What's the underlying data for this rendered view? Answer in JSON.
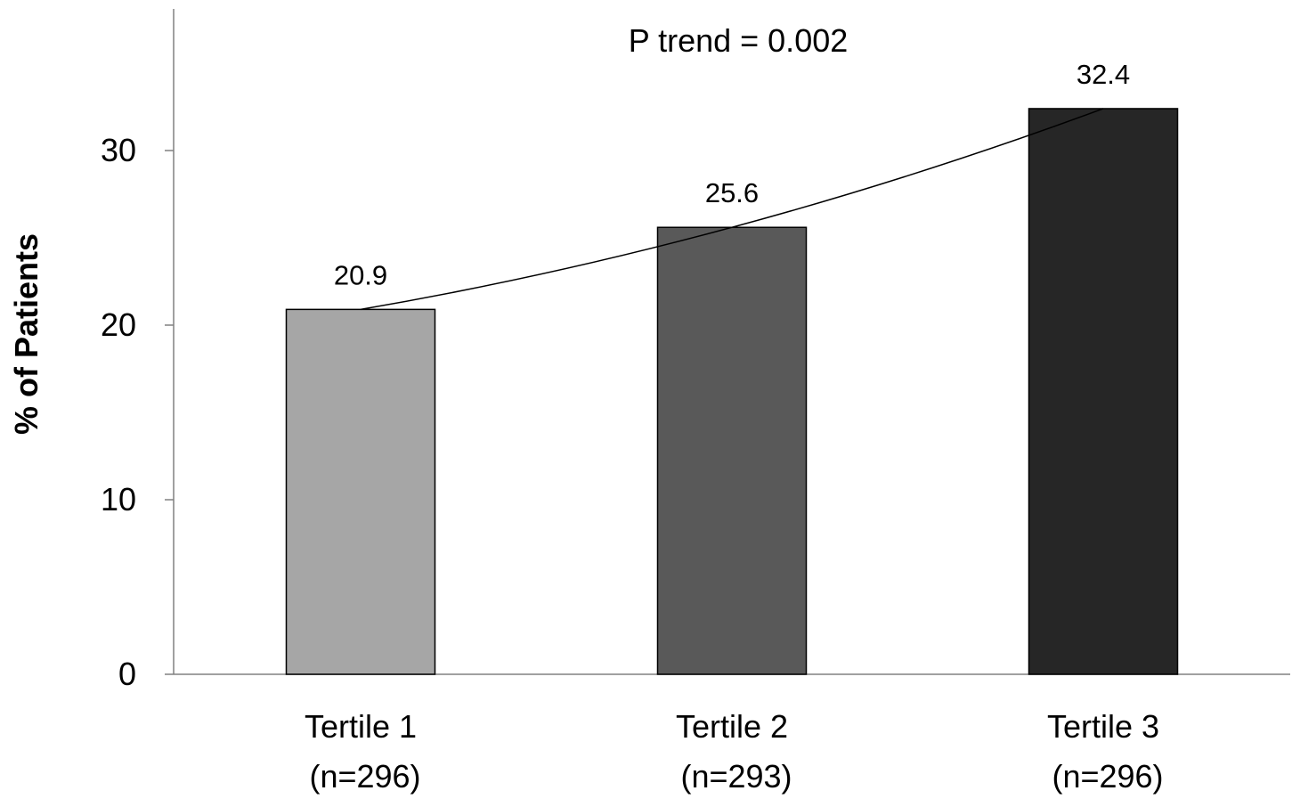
{
  "chart_data": {
    "type": "bar",
    "title": "",
    "xlabel": "",
    "ylabel": "% of Patients",
    "ylim": [
      0,
      38
    ],
    "yticks": [
      0,
      10,
      20,
      30
    ],
    "grid": false,
    "categories": [
      "Tertile 1",
      "Tertile 2",
      "Tertile 3"
    ],
    "category_sublabels": [
      "(n=296)",
      "(n=293)",
      "(n=296)"
    ],
    "values": [
      20.9,
      25.6,
      32.4
    ],
    "value_labels": [
      "20.9",
      "25.6",
      "32.4"
    ],
    "bar_colors": [
      "#a6a6a6",
      "#595959",
      "#262626"
    ],
    "annotation": "P trend = 0.002",
    "trendline": true
  }
}
